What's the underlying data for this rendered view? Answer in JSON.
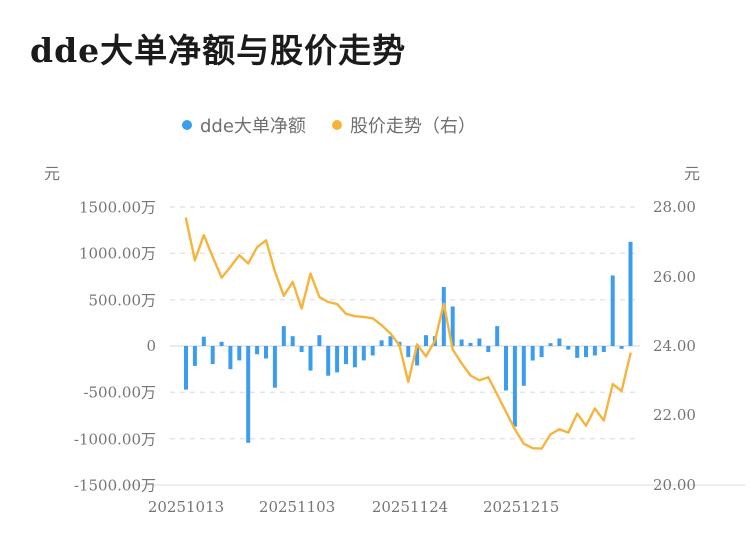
{
  "title": "dde大单净额与股价走势",
  "legend": {
    "items": [
      {
        "label": "dde大单净额",
        "color": "#3b9df0"
      },
      {
        "label": "股价走势（右）",
        "color": "#f7b43d"
      }
    ]
  },
  "y_axis_left": {
    "unit": "元",
    "ticks": [
      {
        "label": "1500.00万",
        "value": 1500
      },
      {
        "label": "1000.00万",
        "value": 1000
      },
      {
        "label": "500.00万",
        "value": 500
      },
      {
        "label": "0",
        "value": 0
      },
      {
        "label": "-500.00万",
        "value": -500
      },
      {
        "label": "-1000.00万",
        "value": -1000
      },
      {
        "label": "-1500.00万",
        "value": -1500
      }
    ]
  },
  "y_axis_right": {
    "unit": "元",
    "ticks": [
      {
        "label": "28.00",
        "value": 28
      },
      {
        "label": "26.00",
        "value": 26
      },
      {
        "label": "24.00",
        "value": 24
      },
      {
        "label": "22.00",
        "value": 22
      },
      {
        "label": "20.00",
        "value": 20
      }
    ]
  },
  "x_axis": {
    "labels": [
      {
        "text": "20251013",
        "bar_index": 0
      },
      {
        "text": "20251103",
        "bar_index": 12.5
      },
      {
        "text": "20251124",
        "bar_index": 25.2
      },
      {
        "text": "20251215",
        "bar_index": 37.7
      }
    ]
  },
  "chart_data": {
    "type": "bar+line",
    "title": "dde大单净额与股价走势",
    "left_axis": {
      "label": "元",
      "unit": "万",
      "range": [
        -1500,
        1500
      ],
      "grid": "dashed"
    },
    "right_axis": {
      "label": "元",
      "range": [
        20,
        28
      ]
    },
    "x_tick_labels": [
      "20251013",
      "20251103",
      "20251124",
      "20251215"
    ],
    "bar_series": {
      "name": "dde大单净额",
      "unit": "万元",
      "color": "#3b9df0",
      "axis": "left",
      "values": [
        -470,
        -215,
        100,
        -195,
        45,
        -250,
        -155,
        -1045,
        -90,
        -135,
        -450,
        215,
        106,
        -65,
        -265,
        117,
        -320,
        -285,
        -195,
        -230,
        -155,
        -102,
        62,
        106,
        45,
        -120,
        -210,
        117,
        106,
        637,
        426,
        70,
        33,
        81,
        -65,
        215,
        -480,
        -870,
        -430,
        -156,
        -120,
        30,
        81,
        -39,
        -127,
        -120,
        -102,
        -65,
        761,
        -30,
        1124
      ]
    },
    "line_series": {
      "name": "股价走势",
      "unit": "元",
      "color": "#f7b43d",
      "axis": "right",
      "values": [
        27.68,
        26.47,
        27.2,
        26.57,
        25.97,
        26.28,
        26.62,
        26.38,
        26.85,
        27.05,
        26.15,
        25.45,
        25.85,
        25.08,
        26.09,
        25.41,
        25.27,
        25.21,
        24.93,
        24.86,
        24.84,
        24.8,
        24.6,
        24.36,
        24.02,
        22.96,
        24.05,
        23.7,
        24.15,
        25.22,
        23.9,
        23.5,
        23.15,
        23.01,
        23.1,
        22.6,
        22.1,
        21.6,
        21.18,
        21.05,
        21.04,
        21.45,
        21.6,
        21.5,
        22.05,
        21.7,
        22.2,
        21.85,
        22.9,
        22.7,
        23.78
      ]
    }
  },
  "style": {
    "grid_color": "#e4e4e4",
    "zero_line_color": "#dcdcdc",
    "axis_line_color": "#e8e8e8"
  }
}
